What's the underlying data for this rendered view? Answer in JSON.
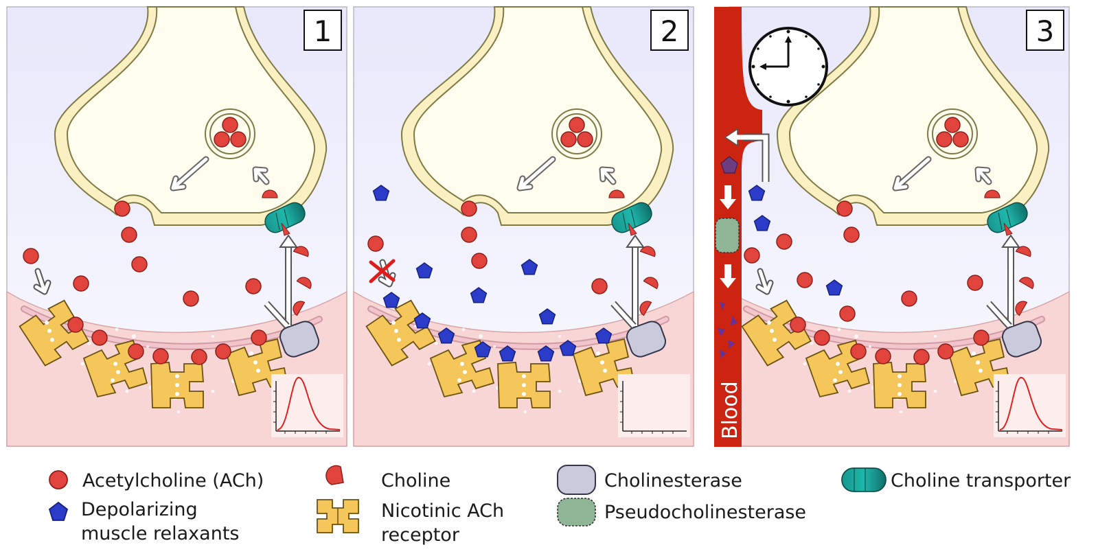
{
  "panels": [
    {
      "number": "1",
      "graph": "peak"
    },
    {
      "number": "2",
      "graph": "flat"
    },
    {
      "number": "3",
      "graph": "peak"
    }
  ],
  "blood_label": "Blood",
  "legend": {
    "acetylcholine": "Acetylcholine (ACh)",
    "relaxant_line1": "Depolarizing",
    "relaxant_line2": "muscle relaxants",
    "choline": "Choline",
    "receptor_line1": "Nicotinic ACh",
    "receptor_line2": "receptor",
    "cholinesterase": "Cholinesterase",
    "pseudocholinesterase": "Pseudocholinesterase",
    "transporter": "Choline transporter"
  },
  "colors": {
    "ach": "#e0443c",
    "relaxant": "#2b3cc9",
    "receptor": "#f5c65a",
    "cholinesterase": "#c9cadb",
    "pseudocholinesterase": "#8db596",
    "transporter": "#1fa49a",
    "terminal": "#fffbe3",
    "muscle": "#f8d6d6",
    "blood": "#cc2411"
  },
  "icons": [
    "clock-icon",
    "blocked-arrow-icon"
  ]
}
